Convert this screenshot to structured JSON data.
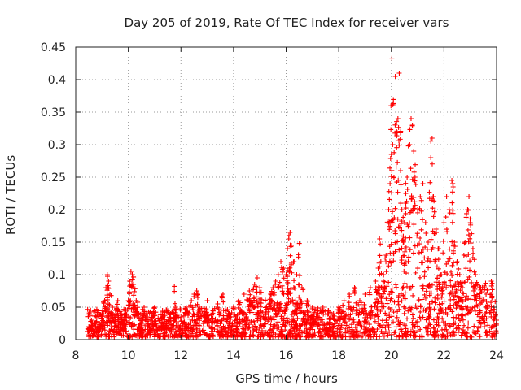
{
  "chart_data": {
    "type": "scatter",
    "title": "Day 205 of 2019, Rate Of TEC Index for receiver vars",
    "xlabel": "GPS time / hours",
    "ylabel": "ROTI / TECUs",
    "xlim": [
      8,
      24
    ],
    "ylim": [
      0,
      0.45
    ],
    "xticks": [
      8,
      10,
      12,
      14,
      16,
      18,
      20,
      22,
      24
    ],
    "yticks": [
      0,
      0.05,
      0.1,
      0.15,
      0.2,
      0.25,
      0.3,
      0.35,
      0.4,
      0.45
    ],
    "ytick_labels": [
      "0",
      "0.05",
      "0.1",
      "0.15",
      "0.2",
      "0.25",
      "0.3",
      "0.35",
      "0.4",
      "0.45"
    ],
    "grid": true,
    "marker": "+",
    "color": "#ff0000",
    "series": [
      {
        "name": "ROTI",
        "points": [
          [
            8.5,
            0.02
          ],
          [
            8.6,
            0.03
          ],
          [
            8.7,
            0.015
          ],
          [
            8.8,
            0.035
          ],
          [
            8.9,
            0.025
          ],
          [
            9.0,
            0.04
          ],
          [
            9.1,
            0.06
          ],
          [
            9.15,
            0.08
          ],
          [
            9.2,
            0.1
          ],
          [
            9.25,
            0.09
          ],
          [
            9.3,
            0.07
          ],
          [
            9.4,
            0.05
          ],
          [
            9.5,
            0.03
          ],
          [
            9.6,
            0.06
          ],
          [
            9.7,
            0.04
          ],
          [
            9.8,
            0.025
          ],
          [
            9.9,
            0.045
          ],
          [
            10.0,
            0.06
          ],
          [
            10.05,
            0.09
          ],
          [
            10.1,
            0.105
          ],
          [
            10.15,
            0.1
          ],
          [
            10.2,
            0.085
          ],
          [
            10.3,
            0.06
          ],
          [
            10.4,
            0.04
          ],
          [
            10.5,
            0.03
          ],
          [
            10.6,
            0.05
          ],
          [
            10.7,
            0.035
          ],
          [
            10.8,
            0.02
          ],
          [
            10.9,
            0.04
          ],
          [
            11.0,
            0.05
          ],
          [
            11.2,
            0.03
          ],
          [
            11.3,
            0.045
          ],
          [
            11.4,
            0.025
          ],
          [
            11.6,
            0.04
          ],
          [
            11.75,
            0.082
          ],
          [
            11.8,
            0.05
          ],
          [
            12.0,
            0.035
          ],
          [
            12.2,
            0.05
          ],
          [
            12.4,
            0.06
          ],
          [
            12.5,
            0.07
          ],
          [
            12.6,
            0.075
          ],
          [
            12.7,
            0.05
          ],
          [
            12.9,
            0.04
          ],
          [
            13.0,
            0.06
          ],
          [
            13.2,
            0.045
          ],
          [
            13.4,
            0.055
          ],
          [
            13.6,
            0.07
          ],
          [
            13.8,
            0.04
          ],
          [
            14.0,
            0.05
          ],
          [
            14.2,
            0.06
          ],
          [
            14.4,
            0.07
          ],
          [
            14.6,
            0.075
          ],
          [
            14.8,
            0.085
          ],
          [
            14.9,
            0.095
          ],
          [
            15.0,
            0.08
          ],
          [
            15.2,
            0.06
          ],
          [
            15.4,
            0.07
          ],
          [
            15.5,
            0.08
          ],
          [
            15.6,
            0.09
          ],
          [
            15.7,
            0.1
          ],
          [
            15.8,
            0.12
          ],
          [
            15.9,
            0.11
          ],
          [
            16.0,
            0.1
          ],
          [
            16.05,
            0.14
          ],
          [
            16.1,
            0.155
          ],
          [
            16.15,
            0.165
          ],
          [
            16.2,
            0.145
          ],
          [
            16.3,
            0.12
          ],
          [
            16.4,
            0.1
          ],
          [
            16.5,
            0.148
          ],
          [
            16.6,
            0.08
          ],
          [
            16.8,
            0.06
          ],
          [
            17.0,
            0.05
          ],
          [
            17.2,
            0.04
          ],
          [
            17.4,
            0.05
          ],
          [
            17.6,
            0.045
          ],
          [
            17.8,
            0.04
          ],
          [
            18.0,
            0.05
          ],
          [
            18.2,
            0.06
          ],
          [
            18.4,
            0.07
          ],
          [
            18.6,
            0.08
          ],
          [
            18.8,
            0.06
          ],
          [
            19.0,
            0.07
          ],
          [
            19.2,
            0.08
          ],
          [
            19.4,
            0.09
          ],
          [
            19.5,
            0.11
          ],
          [
            19.55,
            0.155
          ],
          [
            19.6,
            0.12
          ],
          [
            19.7,
            0.1
          ],
          [
            19.8,
            0.13
          ],
          [
            19.9,
            0.2
          ],
          [
            19.95,
            0.24
          ],
          [
            20.0,
            0.285
          ],
          [
            20.02,
            0.433
          ],
          [
            20.05,
            0.3
          ],
          [
            20.1,
            0.25
          ],
          [
            20.15,
            0.405
          ],
          [
            20.2,
            0.32
          ],
          [
            20.25,
            0.34
          ],
          [
            20.3,
            0.41
          ],
          [
            20.35,
            0.26
          ],
          [
            20.4,
            0.2
          ],
          [
            20.45,
            0.15
          ],
          [
            20.5,
            0.18
          ],
          [
            20.55,
            0.21
          ],
          [
            20.6,
            0.25
          ],
          [
            20.7,
            0.3
          ],
          [
            20.75,
            0.34
          ],
          [
            20.8,
            0.33
          ],
          [
            20.85,
            0.29
          ],
          [
            20.9,
            0.25
          ],
          [
            21.0,
            0.2
          ],
          [
            21.1,
            0.22
          ],
          [
            21.2,
            0.24
          ],
          [
            21.3,
            0.18
          ],
          [
            21.4,
            0.15
          ],
          [
            21.5,
            0.28
          ],
          [
            21.55,
            0.31
          ],
          [
            21.6,
            0.22
          ],
          [
            21.7,
            0.17
          ],
          [
            21.8,
            0.14
          ],
          [
            21.9,
            0.1
          ],
          [
            22.0,
            0.18
          ],
          [
            22.1,
            0.22
          ],
          [
            22.2,
            0.2
          ],
          [
            22.3,
            0.245
          ],
          [
            22.35,
            0.235
          ],
          [
            22.4,
            0.15
          ],
          [
            22.5,
            0.12
          ],
          [
            22.6,
            0.1
          ],
          [
            22.7,
            0.08
          ],
          [
            22.8,
            0.15
          ],
          [
            22.9,
            0.2
          ],
          [
            22.95,
            0.22
          ],
          [
            23.0,
            0.18
          ],
          [
            23.1,
            0.14
          ],
          [
            23.2,
            0.1
          ],
          [
            23.4,
            0.08
          ],
          [
            23.6,
            0.07
          ],
          [
            23.8,
            0.09
          ],
          [
            23.9,
            0.05
          ],
          [
            24.0,
            0.03
          ]
        ]
      }
    ]
  }
}
